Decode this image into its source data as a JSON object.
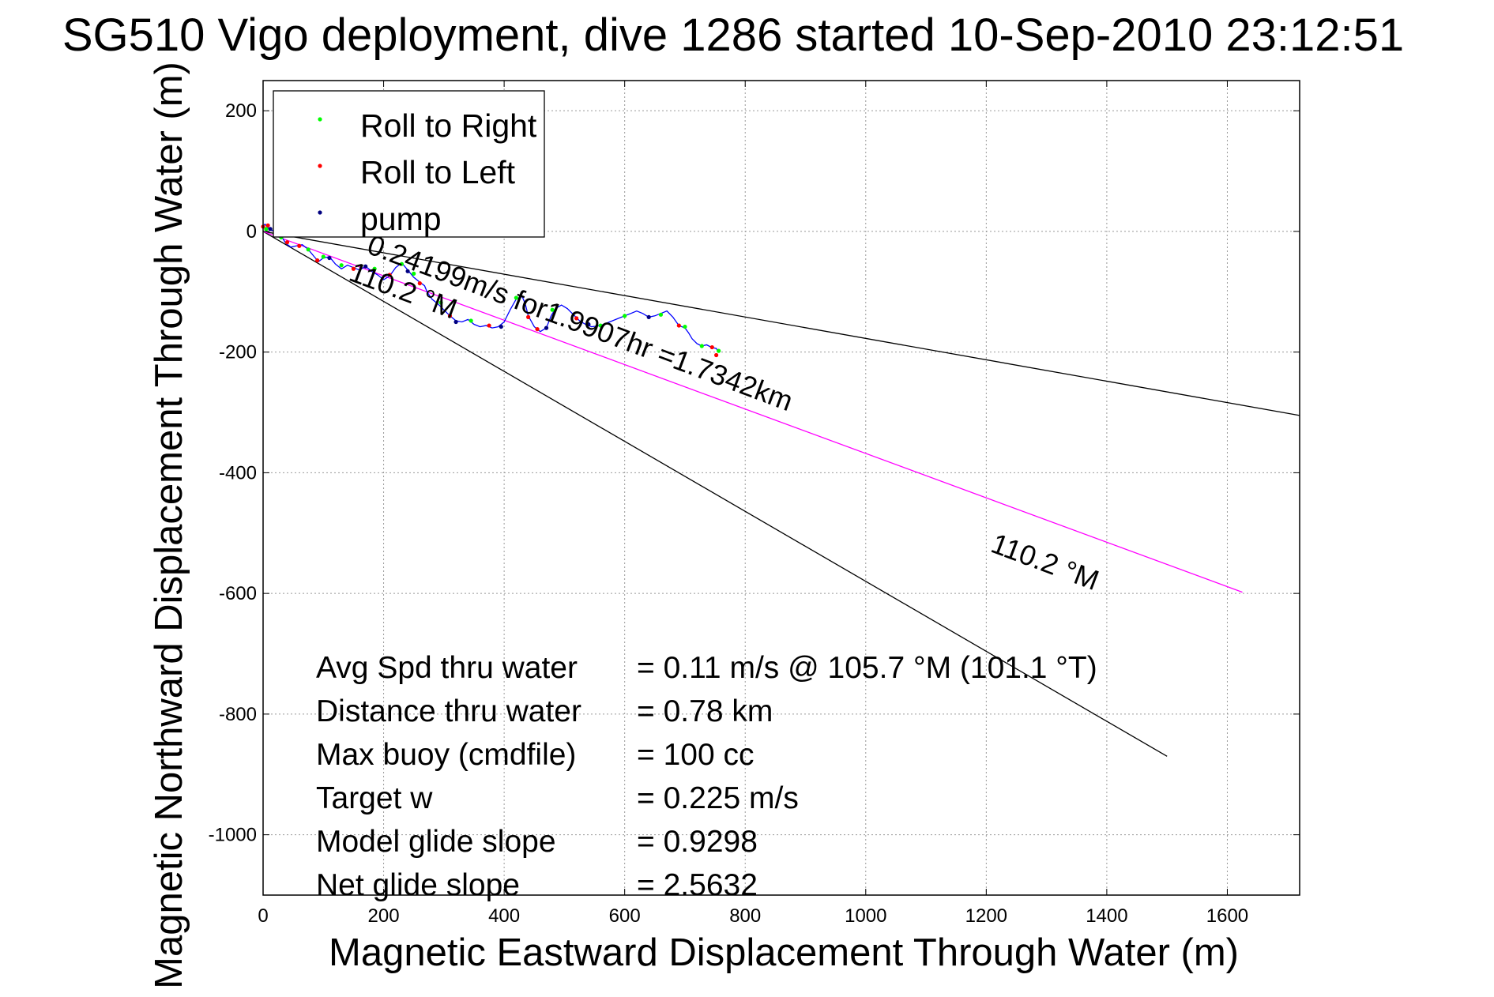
{
  "chart_data": {
    "type": "scatter",
    "title": "SG510 Vigo deployment, dive 1286 started 10-Sep-2010 23:12:51",
    "xlabel": "Magnetic Eastward Displacement Through Water (m)",
    "ylabel": "Magnetic Northward Displacement Through Water (m)",
    "xlim": [
      0,
      1720
    ],
    "ylim": [
      -1100,
      250
    ],
    "xticks": [
      0,
      200,
      400,
      600,
      800,
      1000,
      1200,
      1400,
      1600
    ],
    "xtick_labels": [
      "0",
      "200",
      "400",
      "600",
      "800",
      "1000",
      "1200",
      "1400",
      "1600"
    ],
    "yticks": [
      200,
      0,
      -200,
      -400,
      -600,
      -800,
      -1000
    ],
    "ytick_labels": [
      "200",
      "0",
      "-200",
      "-400",
      "-600",
      "-800",
      "-1000"
    ],
    "grid": true,
    "legend_position": "top-left",
    "legend": [
      {
        "label": "Roll to Right",
        "color": "#00ff00"
      },
      {
        "label": "Roll to Left",
        "color": "#ff0000"
      },
      {
        "label": "pump",
        "color": "#000080"
      }
    ],
    "track": {
      "color": "#0000ff",
      "points": [
        [
          0,
          8
        ],
        [
          3,
          12
        ],
        [
          8,
          6
        ],
        [
          15,
          2
        ],
        [
          22,
          -2
        ],
        [
          30,
          -8
        ],
        [
          38,
          -20
        ],
        [
          46,
          -26
        ],
        [
          55,
          -24
        ],
        [
          65,
          -22
        ],
        [
          75,
          -30
        ],
        [
          85,
          -42
        ],
        [
          92,
          -50
        ],
        [
          100,
          -44
        ],
        [
          110,
          -42
        ],
        [
          120,
          -54
        ],
        [
          130,
          -62
        ],
        [
          140,
          -56
        ],
        [
          150,
          -60
        ],
        [
          160,
          -64
        ],
        [
          170,
          -58
        ],
        [
          180,
          -66
        ],
        [
          190,
          -72
        ],
        [
          200,
          -80
        ],
        [
          210,
          -74
        ],
        [
          220,
          -60
        ],
        [
          230,
          -52
        ],
        [
          240,
          -64
        ],
        [
          250,
          -76
        ],
        [
          260,
          -84
        ],
        [
          268,
          -90
        ],
        [
          272,
          -100
        ],
        [
          280,
          -112
        ],
        [
          290,
          -120
        ],
        [
          300,
          -130
        ],
        [
          310,
          -140
        ],
        [
          320,
          -148
        ],
        [
          330,
          -150
        ],
        [
          340,
          -146
        ],
        [
          350,
          -154
        ],
        [
          360,
          -158
        ],
        [
          370,
          -156
        ],
        [
          380,
          -160
        ],
        [
          390,
          -158
        ],
        [
          400,
          -150
        ],
        [
          410,
          -130
        ],
        [
          420,
          -112
        ],
        [
          430,
          -108
        ],
        [
          435,
          -120
        ],
        [
          440,
          -140
        ],
        [
          450,
          -158
        ],
        [
          460,
          -166
        ],
        [
          470,
          -160
        ],
        [
          478,
          -140
        ],
        [
          485,
          -128
        ],
        [
          495,
          -122
        ],
        [
          505,
          -128
        ],
        [
          515,
          -138
        ],
        [
          525,
          -148
        ],
        [
          535,
          -154
        ],
        [
          545,
          -158
        ],
        [
          560,
          -156
        ],
        [
          575,
          -150
        ],
        [
          590,
          -144
        ],
        [
          600,
          -140
        ],
        [
          610,
          -136
        ],
        [
          620,
          -132
        ],
        [
          630,
          -136
        ],
        [
          640,
          -142
        ],
        [
          650,
          -140
        ],
        [
          660,
          -136
        ],
        [
          670,
          -132
        ],
        [
          680,
          -142
        ],
        [
          690,
          -156
        ],
        [
          700,
          -160
        ],
        [
          706,
          -168
        ],
        [
          712,
          -178
        ],
        [
          720,
          -186
        ],
        [
          728,
          -190
        ],
        [
          736,
          -188
        ],
        [
          744,
          -192
        ],
        [
          752,
          -194
        ],
        [
          756,
          -200
        ]
      ]
    },
    "roll_right_points": [
      [
        5,
        4
      ],
      [
        30,
        -10
      ],
      [
        75,
        -30
      ],
      [
        100,
        -42
      ],
      [
        130,
        -56
      ],
      [
        185,
        -62
      ],
      [
        230,
        -54
      ],
      [
        250,
        -70
      ],
      [
        295,
        -118
      ],
      [
        345,
        -148
      ],
      [
        420,
        -110
      ],
      [
        480,
        -130
      ],
      [
        560,
        -156
      ],
      [
        600,
        -140
      ],
      [
        660,
        -138
      ],
      [
        700,
        -158
      ],
      [
        728,
        -190
      ],
      [
        756,
        -198
      ]
    ],
    "roll_left_points": [
      [
        0,
        8
      ],
      [
        8,
        10
      ],
      [
        40,
        -18
      ],
      [
        60,
        -24
      ],
      [
        90,
        -48
      ],
      [
        150,
        -62
      ],
      [
        210,
        -72
      ],
      [
        260,
        -86
      ],
      [
        310,
        -140
      ],
      [
        375,
        -156
      ],
      [
        440,
        -142
      ],
      [
        455,
        -162
      ],
      [
        520,
        -144
      ],
      [
        690,
        -156
      ],
      [
        745,
        -192
      ],
      [
        752,
        -205
      ]
    ],
    "pump_points": [
      [
        12,
        4
      ],
      [
        20,
        0
      ],
      [
        110,
        -44
      ],
      [
        170,
        -58
      ],
      [
        240,
        -66
      ],
      [
        320,
        -150
      ],
      [
        395,
        -158
      ],
      [
        470,
        -160
      ],
      [
        540,
        -154
      ],
      [
        640,
        -142
      ]
    ],
    "lines": [
      {
        "name": "ref_upper",
        "color": "#000000",
        "points": [
          [
            0,
            0
          ],
          [
            1720,
            -305
          ]
        ]
      },
      {
        "name": "ref_lower",
        "color": "#000000",
        "points": [
          [
            0,
            0
          ],
          [
            1500,
            -870
          ]
        ]
      },
      {
        "name": "current",
        "color": "#ff00ff",
        "points": [
          [
            0,
            0
          ],
          [
            1625,
            -598
          ]
        ]
      }
    ],
    "annotations": [
      {
        "text": "0.24199m/s for1.9907hr =1.7342km",
        "x": 170,
        "y": -35,
        "angle": 20.6
      },
      {
        "text": "110.2 °M",
        "x": 140,
        "y": -80,
        "angle": 20.6
      },
      {
        "text": "110.2 °M",
        "x": 1205,
        "y": -530,
        "angle": 20.6
      }
    ],
    "stats": [
      {
        "label": "Avg Spd thru water",
        "value": "=  0.11 m/s @ 105.7 °M (101.1 °T)"
      },
      {
        "label": "Distance thru water",
        "value": "=  0.78 km"
      },
      {
        "label": "Max buoy (cmdfile)",
        "value": "= 100 cc"
      },
      {
        "label": "Target w",
        "value": "= 0.225 m/s"
      },
      {
        "label": "Model glide slope",
        "value": "= 0.9298"
      },
      {
        "label": "Net glide slope",
        "value": "= 2.5632"
      }
    ]
  }
}
